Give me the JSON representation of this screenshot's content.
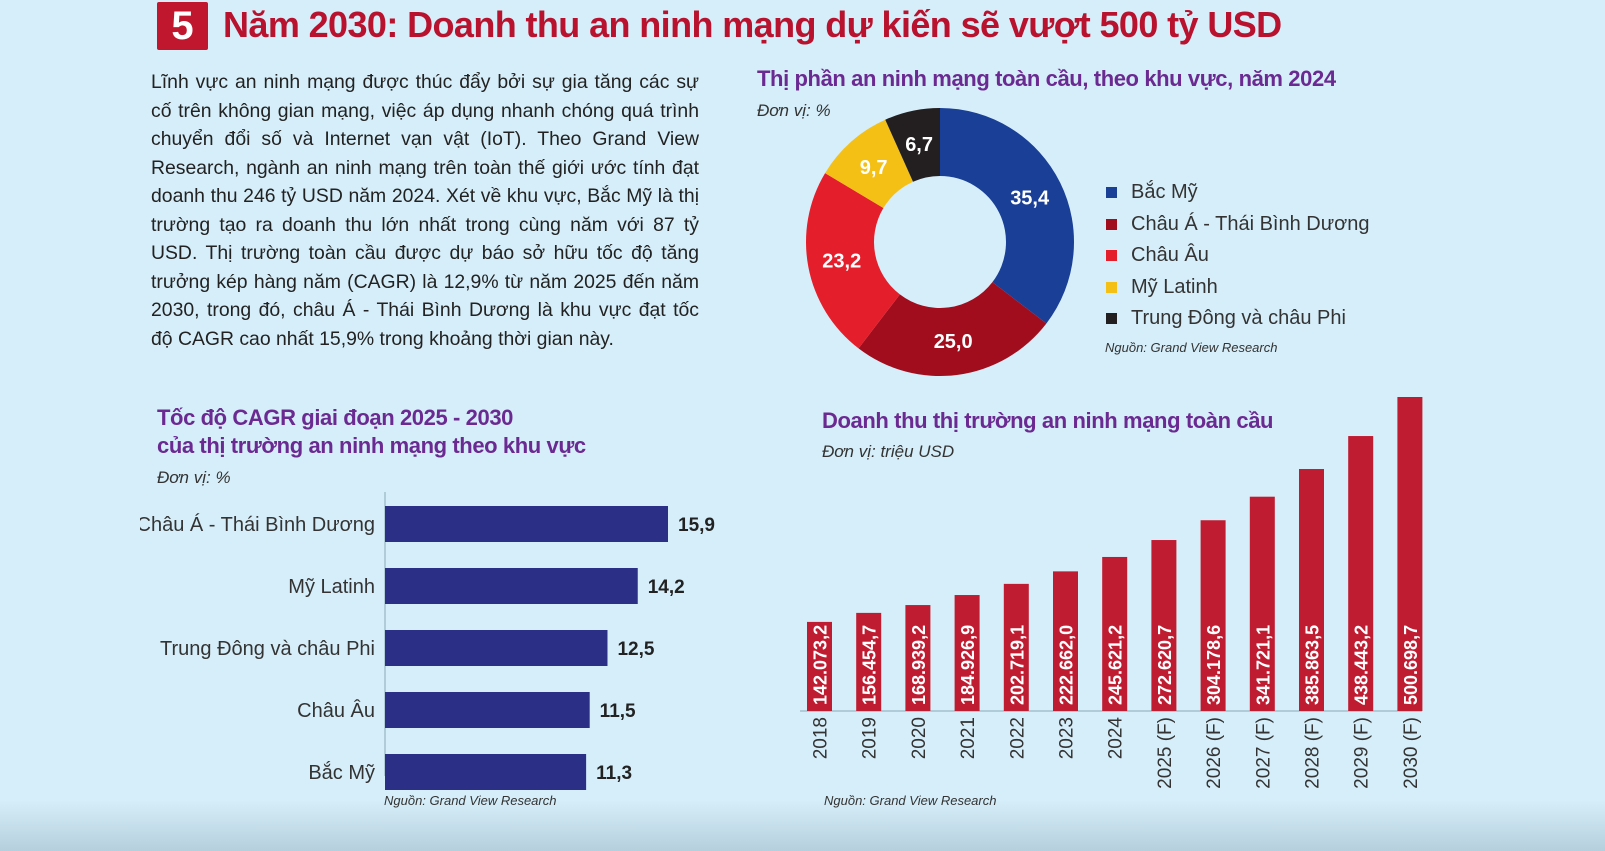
{
  "header": {
    "section_number": "5",
    "title": "Năm 2030: Doanh thu an ninh mạng dự kiến sẽ vượt 500 tỷ USD"
  },
  "intro": "Lĩnh vực an ninh mạng được thúc đẩy bởi sự gia tăng các sự cố trên không gian mạng, việc áp dụng nhanh chóng quá trình chuyển đổi số và Internet vạn vật (IoT). Theo Grand View Research, ngành an ninh mạng trên toàn thế giới ước tính đạt doanh thu 246 tỷ USD năm 2024. Xét về khu vực, Bắc Mỹ là thị trường tạo ra doanh thu lớn nhất trong cùng năm với 87 tỷ USD. Thị trường toàn cầu được dự báo sở hữu tốc độ tăng trưởng kép hàng năm (CAGR) là 12,9% từ năm 2025 đến năm 2030, trong đó, châu Á - Thái Bình Dương là khu vực đạt tốc độ CAGR cao nhất 15,9% trong khoảng thời gian này.",
  "donut": {
    "title": "Thị phần an ninh mạng toàn cầu, theo khu vực, năm 2024",
    "unit": "Đơn vị: %",
    "source": "Nguồn: Grand View Research"
  },
  "cagr": {
    "title_line1": "Tốc độ CAGR giai đoạn 2025 - 2030",
    "title_line2": "của thị trường an ninh mạng theo khu vực",
    "unit": "Đơn vị: %",
    "source": "Nguồn: Grand View Research"
  },
  "revenue": {
    "title": "Doanh thu thị trường an ninh mạng toàn cầu",
    "unit": "Đơn vị: triệu USD",
    "source": "Nguồn: Grand View Research"
  },
  "chart_data": [
    {
      "type": "pie",
      "title": "Thị phần an ninh mạng toàn cầu, theo khu vực, năm 2024",
      "unit": "%",
      "categories": [
        "Bắc Mỹ",
        "Châu Á - Thái Bình Dương",
        "Châu Âu",
        "Mỹ Latinh",
        "Trung Đông và châu Phi"
      ],
      "values": [
        35.4,
        25.0,
        23.2,
        9.7,
        6.7
      ],
      "labels": [
        "35,4",
        "25,0",
        "23,2",
        "9,7",
        "6,7"
      ],
      "colors": [
        "#1a3f96",
        "#a10d1c",
        "#e41f2b",
        "#f5c016",
        "#231f20"
      ],
      "legend": "right"
    },
    {
      "type": "bar",
      "orientation": "horizontal",
      "title": "Tốc độ CAGR giai đoạn 2025 - 2030 của thị trường an ninh mạng theo khu vực",
      "unit": "%",
      "categories": [
        "Châu Á  - Thái Bình Dương",
        "Mỹ Latinh",
        "Trung Đông và châu Phi",
        "Châu Âu",
        "Bắc Mỹ"
      ],
      "values": [
        15.9,
        14.2,
        12.5,
        11.5,
        11.3
      ],
      "labels": [
        "15,9",
        "14,2",
        "12,5",
        "11,5",
        "11,3"
      ],
      "xlim": [
        0,
        16.5
      ],
      "color": "#2b2f86"
    },
    {
      "type": "bar",
      "orientation": "vertical",
      "title": "Doanh thu thị trường an ninh mạng toàn cầu",
      "unit": "triệu USD",
      "categories": [
        "2018",
        "2019",
        "2020",
        "2021",
        "2022",
        "2023",
        "2024",
        "2025 (F)",
        "2026 (F)",
        "2027 (F)",
        "2028 (F)",
        "2029 (F)",
        "2030 (F)"
      ],
      "values": [
        142073.2,
        156454.7,
        168939.2,
        184926.9,
        202719.1,
        222662.0,
        245621.2,
        272620.7,
        304178.6,
        341721.1,
        385863.5,
        438443.2,
        500698.7
      ],
      "labels": [
        "142.073,2",
        "156.454,7",
        "168.939,2",
        "184.926,9",
        "202.719,1",
        "222.662,0",
        "245.621,2",
        "272.620,7",
        "304.178,6",
        "341.721,1",
        "385.863,5",
        "438.443,2",
        "500.698,7"
      ],
      "ylim": [
        0,
        500698.7
      ],
      "color": "#c01c31"
    }
  ]
}
